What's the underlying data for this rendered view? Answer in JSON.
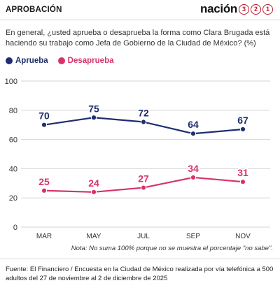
{
  "header": {
    "section": "APROBACIÓN",
    "brand_word": "nación",
    "brand_digits": [
      "3",
      "2",
      "1"
    ]
  },
  "question": "En general, ¿usted aprueba o desaprueba la forma como Clara Brugada está haciendo su trabajo como Jefa de Gobierno de la Ciudad de México? (%)",
  "colors": {
    "aprueba": "#1f2e6e",
    "desaprueba": "#d6336c",
    "brand": "#c3172c",
    "grid": "#d6d6d6"
  },
  "chart_data": {
    "type": "line",
    "categories": [
      "MAR",
      "MAY",
      "JUL",
      "SEP",
      "NOV"
    ],
    "series": [
      {
        "name": "Aprueba",
        "values": [
          70,
          75,
          72,
          64,
          67
        ]
      },
      {
        "name": "Desaprueba",
        "values": [
          25,
          24,
          27,
          34,
          31
        ]
      }
    ],
    "yticks": [
      0,
      20,
      40,
      60,
      80,
      100
    ],
    "ylim": [
      0,
      100
    ],
    "grid": true,
    "legend": "top-left"
  },
  "note": "Nota: No suma 100% porque no se muestra el porcentaje \"no sabe\".",
  "source": "Fuente: El Financiero / Encuesta en la Ciudad de México realizada por vía telefónica a 500 adultos del 27 de noviembre al 2 de diciembre de 2025"
}
